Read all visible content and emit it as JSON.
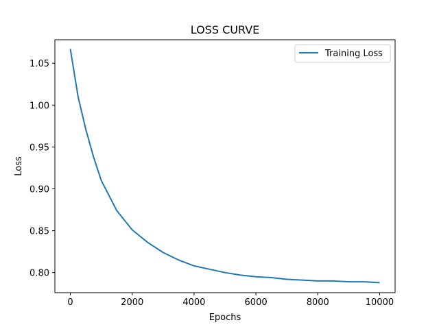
{
  "chart_data": {
    "type": "line",
    "title": "LOSS CURVE",
    "xlabel": "Epochs",
    "ylabel": "Loss",
    "xlim": [
      -500,
      10500
    ],
    "ylim": [
      0.776,
      1.078
    ],
    "xticks": [
      0,
      2000,
      4000,
      6000,
      8000,
      10000
    ],
    "yticks": [
      0.8,
      0.85,
      0.9,
      0.95,
      1.0,
      1.05
    ],
    "grid": false,
    "legend_position": "top-right",
    "series": [
      {
        "name": "Training Loss",
        "color": "#1f77b4",
        "x": [
          0,
          250,
          500,
          750,
          1000,
          1500,
          2000,
          2500,
          3000,
          3500,
          4000,
          4500,
          5000,
          5500,
          6000,
          6500,
          7000,
          7500,
          8000,
          8500,
          9000,
          9500,
          10000
        ],
        "y": [
          1.067,
          1.01,
          0.971,
          0.938,
          0.91,
          0.874,
          0.851,
          0.836,
          0.824,
          0.815,
          0.808,
          0.804,
          0.8,
          0.797,
          0.795,
          0.794,
          0.792,
          0.791,
          0.79,
          0.79,
          0.789,
          0.789,
          0.788
        ]
      }
    ]
  }
}
